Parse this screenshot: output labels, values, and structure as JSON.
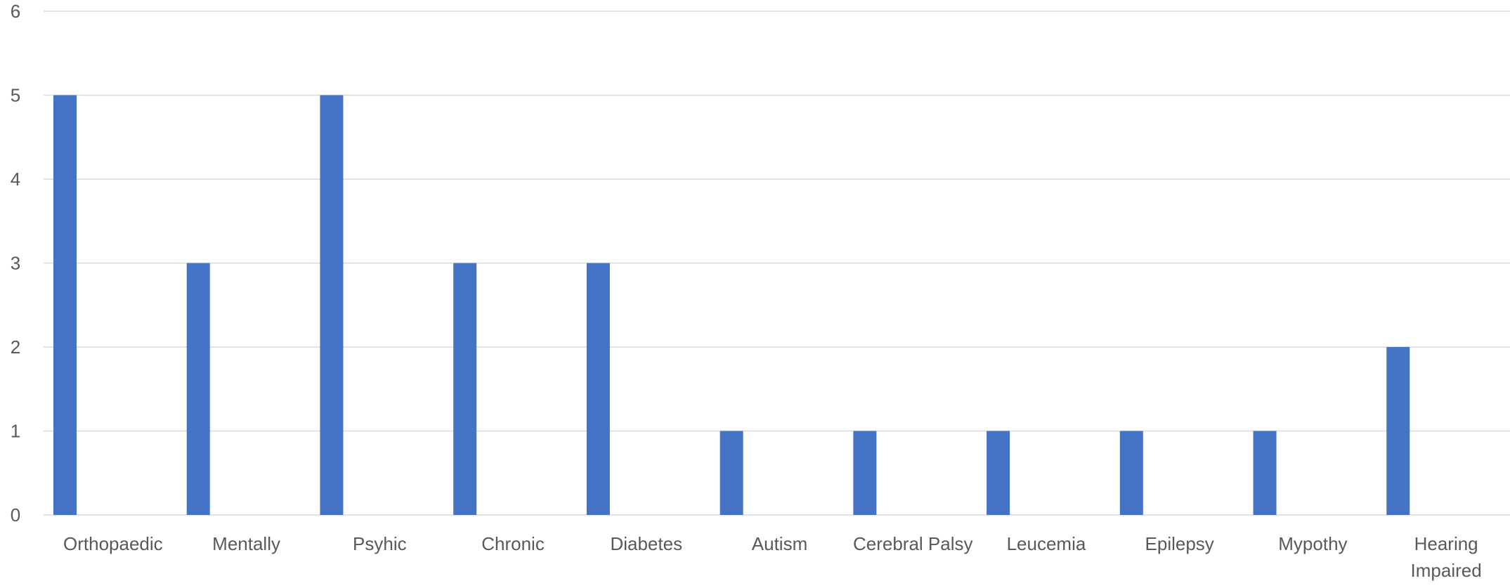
{
  "chart_data": {
    "type": "bar",
    "title": "",
    "xlabel": "",
    "ylabel": "",
    "categories": [
      "Orthopaedic",
      "Mentally",
      "Psyhic",
      "Chronic",
      "Diabetes",
      "Autism",
      "Cerebral Palsy",
      "Leucemia",
      "Epilepsy",
      "Mypothy",
      "Hearing Impaired"
    ],
    "series": [
      {
        "values": [
          5,
          3,
          5,
          3,
          3,
          1,
          1,
          1,
          1,
          1,
          2
        ]
      }
    ],
    "ylim": [
      0,
      6
    ],
    "yticks": [
      0,
      1,
      2,
      3,
      4,
      5,
      6
    ],
    "grid": true,
    "legend": "none",
    "colors": {
      "bar": "#4472C4",
      "grid": "#D9D9D9",
      "text": "#595959"
    }
  }
}
